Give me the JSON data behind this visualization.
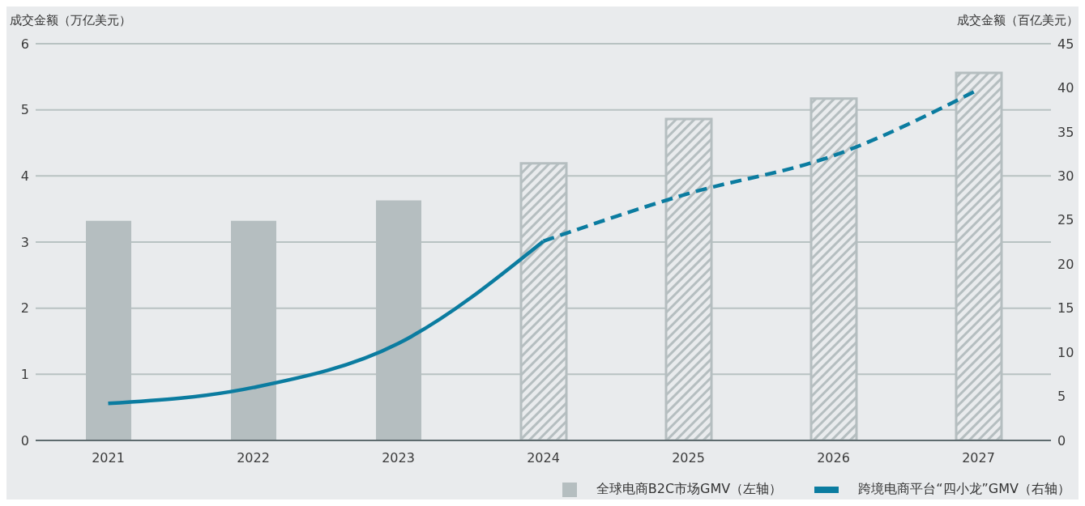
{
  "chart_data": {
    "type": "bar",
    "ylabel": "成交金额（万亿美元）",
    "y2label": "成交金额（百亿美元）",
    "categories": [
      "2021",
      "2022",
      "2023",
      "2024",
      "2025",
      "2026",
      "2027"
    ],
    "stacked": true,
    "series": [
      {
        "name": "全球电商B2C市场GMV（左轴）",
        "color": "#b5bec0",
        "values": [
          3.32,
          3.32,
          3.63,
          null,
          null,
          null,
          null
        ]
      },
      {
        "color": "#b5bec0",
        "values": [
          null,
          null,
          null,
          4.19,
          4.86,
          5.17,
          5.56
        ]
      },
      {
        "name": "跨境电商平台“四小龙”GMV（右轴）",
        "type": "line",
        "axis": "y2",
        "color": "#0b7ca0",
        "line_style": "solid",
        "values": [
          4.2,
          6.0,
          11.0,
          22.6,
          null,
          null,
          null
        ]
      },
      {
        "type": "line",
        "axis": "y2",
        "color": "#0b7ca0",
        "line_style": "dashed",
        "values": [
          null,
          null,
          null,
          22.6,
          28.0,
          32.3,
          39.8
        ]
      }
    ],
    "ylim": [
      0,
      6
    ],
    "yticks": [
      0,
      1,
      2,
      3,
      4,
      5,
      6
    ],
    "y2lim": [
      0,
      45
    ],
    "y2ticks": [
      0,
      5,
      10,
      15,
      20,
      25,
      30,
      35,
      40,
      45
    ],
    "grid": "y",
    "legend": "bottom right",
    "marker": "none"
  }
}
